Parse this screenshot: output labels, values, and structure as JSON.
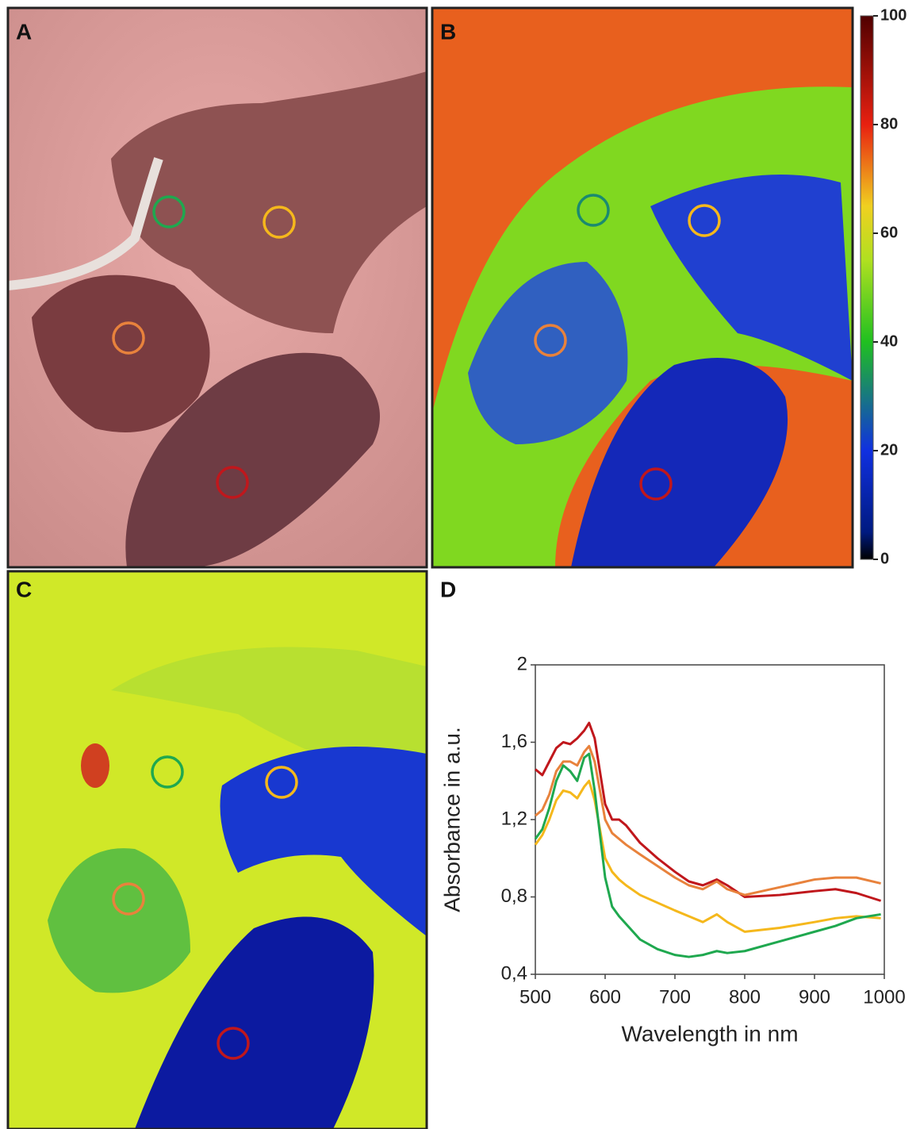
{
  "panel_labels": [
    "A",
    "B",
    "C",
    "D"
  ],
  "colorbar": {
    "lim": [
      0,
      100
    ],
    "ticks": [
      0,
      20,
      40,
      60,
      80,
      100
    ]
  },
  "chart_data": {
    "type": "line",
    "xlabel": "Wavelength in nm",
    "ylabel": "Absorbance in a.u.",
    "xlim": [
      500,
      1000
    ],
    "ylim": [
      0.4,
      2
    ],
    "xticks": [
      500,
      600,
      700,
      800,
      900,
      1000
    ],
    "yticks": [
      {
        "value": 0.4,
        "label": "0,4"
      },
      {
        "value": 0.8,
        "label": "0,8"
      },
      {
        "value": 1.2,
        "label": "1,2"
      },
      {
        "value": 1.6,
        "label": "1,6"
      },
      2
    ],
    "x": [
      500,
      510,
      520,
      530,
      540,
      550,
      560,
      570,
      577,
      585,
      600,
      610,
      620,
      630,
      650,
      675,
      700,
      720,
      740,
      760,
      775,
      800,
      850,
      900,
      930,
      960,
      995
    ],
    "series": [
      {
        "color": "#c0171c",
        "values": [
          1.46,
          1.43,
          1.5,
          1.57,
          1.6,
          1.59,
          1.62,
          1.66,
          1.7,
          1.62,
          1.28,
          1.2,
          1.2,
          1.17,
          1.08,
          1.0,
          0.93,
          0.88,
          0.86,
          0.89,
          0.86,
          0.8,
          0.81,
          0.83,
          0.84,
          0.82,
          0.78
        ]
      },
      {
        "color": "#e8823c",
        "values": [
          1.22,
          1.25,
          1.33,
          1.45,
          1.5,
          1.5,
          1.48,
          1.55,
          1.58,
          1.5,
          1.2,
          1.13,
          1.1,
          1.07,
          1.02,
          0.96,
          0.9,
          0.86,
          0.84,
          0.88,
          0.84,
          0.81,
          0.85,
          0.89,
          0.9,
          0.9,
          0.87
        ]
      },
      {
        "color": "#f5b81c",
        "values": [
          1.07,
          1.12,
          1.2,
          1.3,
          1.35,
          1.34,
          1.31,
          1.37,
          1.4,
          1.3,
          1.0,
          0.93,
          0.89,
          0.86,
          0.81,
          0.77,
          0.73,
          0.7,
          0.67,
          0.71,
          0.67,
          0.62,
          0.64,
          0.67,
          0.69,
          0.7,
          0.69
        ]
      },
      {
        "color": "#1fa84f",
        "values": [
          1.1,
          1.15,
          1.26,
          1.4,
          1.48,
          1.45,
          1.4,
          1.52,
          1.54,
          1.35,
          0.9,
          0.75,
          0.7,
          0.66,
          0.58,
          0.53,
          0.5,
          0.49,
          0.5,
          0.52,
          0.51,
          0.52,
          0.57,
          0.62,
          0.65,
          0.69,
          0.71
        ]
      }
    ]
  }
}
